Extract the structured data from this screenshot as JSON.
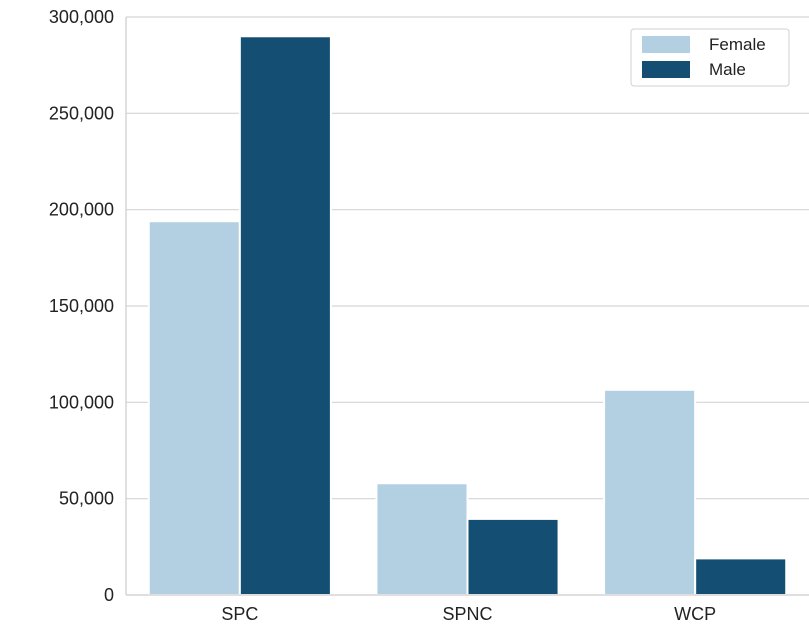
{
  "chart_data": {
    "type": "bar",
    "categories": [
      "SPC",
      "SPNC",
      "WCP"
    ],
    "series": [
      {
        "name": "Female",
        "values": [
          194000,
          58000,
          106500
        ],
        "color": "#b3cfe2"
      },
      {
        "name": "Male",
        "values": [
          290000,
          39500,
          19000
        ],
        "color": "#144f73"
      }
    ],
    "ylim": [
      0,
      300000
    ],
    "yticks": [
      0,
      50000,
      100000,
      150000,
      200000,
      250000,
      300000
    ],
    "ytick_labels": [
      "0",
      "50,000",
      "100,000",
      "150,000",
      "200,000",
      "250,000",
      "300,000"
    ],
    "grid": "horizontal",
    "legend": "top-right",
    "xlabel": "",
    "ylabel": "",
    "title": ""
  }
}
